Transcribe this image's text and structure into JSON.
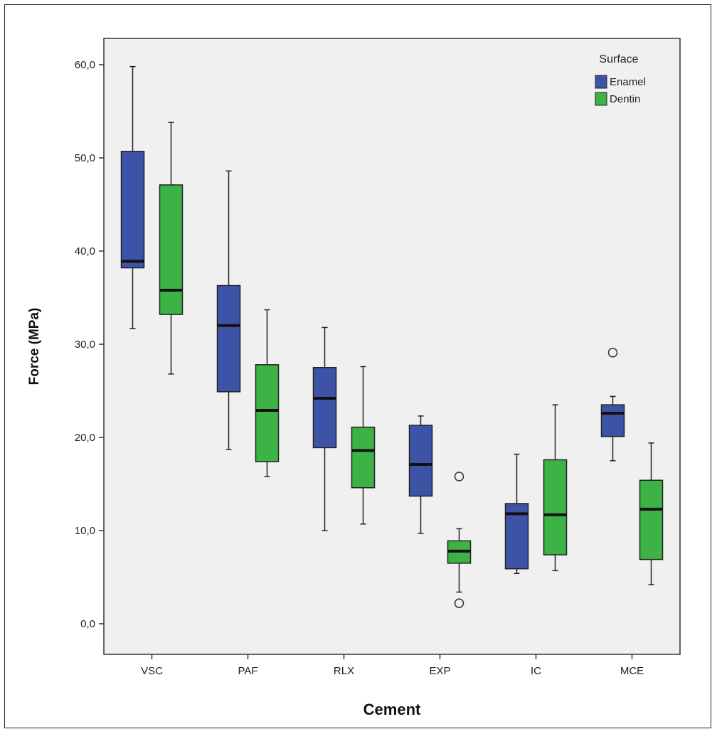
{
  "chart_data": {
    "type": "boxplot",
    "xlabel": "Cement",
    "ylabel": "Force (MPa)",
    "ylim": [
      -3.5,
      63.5
    ],
    "yticks": [
      0,
      10,
      20,
      30,
      40,
      50,
      60
    ],
    "ytick_labels": [
      "0,0",
      "10,0",
      "20,0",
      "30,0",
      "40,0",
      "50,0",
      "60,0"
    ],
    "categories": [
      "VSC",
      "PAF",
      "RLX",
      "EXP",
      "IC",
      "MCE"
    ],
    "grid": false,
    "legend": {
      "title": "Surface",
      "position": "top-right"
    },
    "series": [
      {
        "name": "Enamel",
        "color": "#3d53a6",
        "boxes": [
          {
            "min": 31.7,
            "q1": 38.2,
            "median": 38.9,
            "q3": 50.7,
            "max": 59.8,
            "outliers": []
          },
          {
            "min": 18.7,
            "q1": 24.9,
            "median": 32.0,
            "q3": 36.3,
            "max": 48.6,
            "outliers": []
          },
          {
            "min": 10.0,
            "q1": 18.9,
            "median": 24.2,
            "q3": 27.5,
            "max": 31.8,
            "outliers": []
          },
          {
            "min": 9.7,
            "q1": 13.7,
            "median": 17.1,
            "q3": 21.3,
            "max": 22.3,
            "outliers": []
          },
          {
            "min": 5.4,
            "q1": 5.9,
            "median": 11.8,
            "q3": 12.9,
            "max": 18.2,
            "outliers": []
          },
          {
            "min": 17.5,
            "q1": 20.1,
            "median": 22.6,
            "q3": 23.5,
            "max": 24.4,
            "outliers": [
              29.1
            ]
          }
        ]
      },
      {
        "name": "Dentin",
        "color": "#3db346",
        "boxes": [
          {
            "min": 26.8,
            "q1": 33.2,
            "median": 35.8,
            "q3": 47.1,
            "max": 53.8,
            "outliers": []
          },
          {
            "min": 15.8,
            "q1": 17.4,
            "median": 22.9,
            "q3": 27.8,
            "max": 33.7,
            "outliers": []
          },
          {
            "min": 10.7,
            "q1": 14.6,
            "median": 18.6,
            "q3": 21.1,
            "max": 27.6,
            "outliers": []
          },
          {
            "min": 3.4,
            "q1": 6.5,
            "median": 7.8,
            "q3": 8.9,
            "max": 10.2,
            "outliers": [
              15.8,
              2.2
            ]
          },
          {
            "min": 5.7,
            "q1": 7.4,
            "median": 11.7,
            "q3": 17.6,
            "max": 23.5,
            "outliers": []
          },
          {
            "min": 4.2,
            "q1": 6.9,
            "median": 12.3,
            "q3": 15.4,
            "max": 19.4,
            "outliers": []
          }
        ]
      }
    ]
  }
}
